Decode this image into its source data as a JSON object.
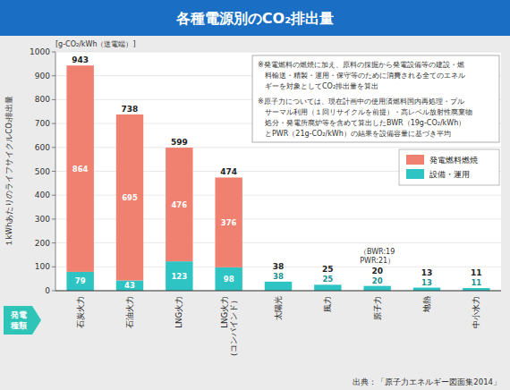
{
  "chart_data": {
    "type": "bar",
    "stacked": true,
    "title": "各種電源別のCO₂排出量",
    "unit_label": "[g-CO₂/kWh（送電端）]",
    "ylabel": "１kWhあたりのライフサイクルCO₂排出量",
    "xlabel": "発電\n種類",
    "categories": [
      "石炭火力",
      "石油火力",
      "LNG火力",
      "LNG火力\n（コンバインド）",
      "太陽光",
      "風力",
      "原子力",
      "地熱",
      "中小水力"
    ],
    "series": [
      {
        "name": "設備・運用",
        "color": "#2ec4c4",
        "values": [
          79,
          43,
          123,
          98,
          38,
          25,
          20,
          13,
          11
        ]
      },
      {
        "name": "発電燃料燃焼",
        "color": "#f08070",
        "values": [
          864,
          695,
          476,
          376,
          0,
          0,
          0,
          0,
          0
        ]
      }
    ],
    "totals": [
      943,
      738,
      599,
      474,
      38,
      25,
      20,
      13,
      11
    ],
    "annotations": [
      {
        "text": "（BWR:19\nPWR:21）",
        "category": "原子力"
      }
    ],
    "notes": [
      "※発電燃料の燃焼に加え、原料の採掘から発電設備等の建設・燃",
      "　料輸送・精製・運用・保守等のために消費される全てのエネル",
      "　ギーを対象としてCO₂排出量を算出",
      "※原子力については、現在計画中の使用済燃料国内再処理・プル",
      "　サーマル利用（１回リサイクルを前提）・高レベル放射性廃棄物",
      "　処分・発電所廃炉等を含めて算出したBWR（19g-CO₂/kWh）",
      "　とPWR（21g-CO₂/kWh）の結果を設備容量に基づき平均"
    ],
    "source": "出典：「原子力エネルギー図面集2014」",
    "ylim": [
      0,
      1000
    ],
    "yticks": [
      0,
      100,
      200,
      300,
      400,
      500,
      600,
      700,
      800,
      900,
      1000
    ],
    "grid": true,
    "legend": "upper right",
    "data_labels": true
  }
}
